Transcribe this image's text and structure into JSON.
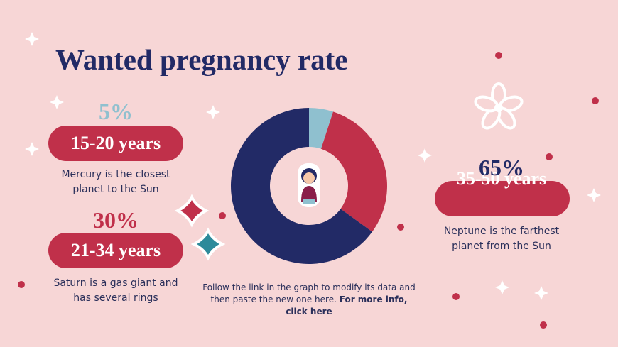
{
  "chart_data": {
    "type": "donut",
    "title": "Wanted pregnancy rate",
    "categories": [
      "15-20 years",
      "21-34 years",
      "35-50 years"
    ],
    "values": [
      5,
      30,
      65
    ],
    "value_labels": [
      "5%",
      "30%",
      "65%"
    ],
    "colors": [
      "#8fc0cf",
      "#c0304a",
      "#222a66"
    ]
  },
  "notes": [
    "Mercury is the closest planet to the Sun",
    "Saturn is a gas giant and has several rings",
    "Neptune is the farthest planet from the Sun"
  ],
  "footer": {
    "text": "Follow the link in the graph to modify its data and then paste the new one here.",
    "link": "For more info, click here"
  }
}
